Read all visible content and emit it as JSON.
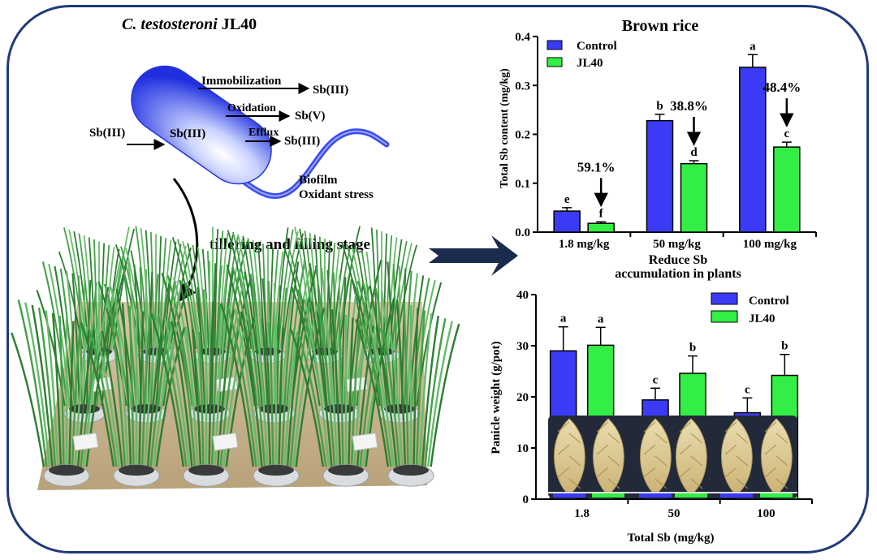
{
  "diagram": {
    "strain_italic": "C. testosteroni",
    "strain_suffix": " JL40",
    "stage_label": "tillering and filling stage",
    "mech": {
      "immobilization": "Immobilization",
      "sb3_out1": "Sb(III)",
      "oxidation": "Oxidation",
      "sbv": "Sb(V)",
      "sb3_outside": "Sb(III)",
      "sb3_inside": "Sb(III)",
      "efflux": "Efflux",
      "sb3_out2": "Sb(III)",
      "biofilm": "Biofilm",
      "oxidant_stress": "Oxidant stress"
    }
  },
  "colors": {
    "control": "#3b3bf5",
    "jl40": "#33ee44",
    "frame": "#1f3a7a"
  },
  "chart_data": [
    {
      "type": "bar",
      "title": "Brown rice",
      "ylabel": "Total Sb content (mg/kg)",
      "xlabel": "",
      "categories": [
        "1.8 mg/kg",
        "50 mg/kg",
        "100 mg/kg"
      ],
      "ylim": [
        0,
        0.4
      ],
      "yticks": [
        "0.0",
        "0.1",
        "0.2",
        "0.3",
        "0.4"
      ],
      "legend_position": "top-left",
      "series": [
        {
          "name": "Control",
          "values": [
            0.043,
            0.228,
            0.337
          ],
          "errors": [
            0.007,
            0.013,
            0.026
          ],
          "letters": [
            "e",
            "b",
            "a"
          ]
        },
        {
          "name": "JL40",
          "values": [
            0.018,
            0.14,
            0.174
          ],
          "errors": [
            0.003,
            0.006,
            0.01
          ],
          "letters": [
            "f",
            "d",
            "c"
          ]
        }
      ],
      "reductions": [
        "59.1%",
        "38.8%",
        "48.4%"
      ],
      "caption_line1": "Reduce Sb",
      "caption_line2": "accumulation in plants"
    },
    {
      "type": "bar",
      "title": "",
      "ylabel": "Panicle weight (g/pot)",
      "xlabel": "Total Sb (mg/kg)",
      "categories": [
        "1.8",
        "50",
        "100"
      ],
      "ylim": [
        0,
        40
      ],
      "yticks": [
        "0",
        "10",
        "20",
        "30",
        "40"
      ],
      "legend_position": "top-center",
      "series": [
        {
          "name": "Control",
          "values": [
            29.0,
            19.4,
            16.9
          ],
          "errors": [
            4.7,
            2.3,
            2.9
          ],
          "letters": [
            "a",
            "c",
            "c"
          ]
        },
        {
          "name": "JL40",
          "values": [
            30.1,
            24.6,
            24.2
          ],
          "errors": [
            3.5,
            3.4,
            4.1
          ],
          "letters": [
            "a",
            "b",
            "b"
          ]
        }
      ]
    }
  ]
}
